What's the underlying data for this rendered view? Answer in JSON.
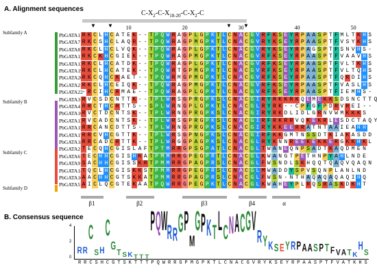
{
  "section_a": {
    "label": "A.",
    "title": "Alignment sequences"
  },
  "section_b": {
    "label": "B.",
    "title": "Consensus sequence"
  },
  "motif": {
    "c1": "C-X",
    "s1": "2",
    "c2": "-C-X",
    "s2": "18-20",
    "c3": "-C-X",
    "s3": "2",
    "c4": "-C"
  },
  "positions": [
    "10",
    "20",
    "30",
    "40",
    "50"
  ],
  "subfamilies": [
    {
      "label": "Subfamily A",
      "color": "#3a9b3a"
    },
    {
      "label": "Subfamily B",
      "color": "#9b59b6"
    },
    {
      "label": "Subfamily C",
      "color": "#e74c3c"
    },
    {
      "label": "Subfamily D",
      "color": "#f0a500"
    }
  ],
  "sequences": [
    {
      "name": "PbGATA1",
      "seq": "RKCLHCATEK--TPQWRAGPLGPKTLCNACGVRFKSEYRPAASPTFMLTKHS"
    },
    {
      "name": "PbGATA7",
      "seq": "RKCSHCLAQR--TPQWRAGPMGPKTLCNACGVRYKSEYRPAASPTFVSYKHS"
    },
    {
      "name": "PbGATA8",
      "seq": "RKCLHCLVQK--TPQWRAGPLGPKTLCNACGVRYKSEYRPAGSPTFSNVHS-"
    },
    {
      "name": "PbGATA11",
      "seq": "RKCKHCGIEK--TPQWRAGPMGPKTLCNACGVRFKSEYRPAASPTFVAAVHS"
    },
    {
      "name": "PbGATA13",
      "seq": "RKCLHCATDK--TPQWRAGPLGPKTLCNACGVRFKSEYRPAASPTFVLTKHS"
    },
    {
      "name": "PbGATA19",
      "seq": "RKCLHCATEK--TPQWRTGPMGPKTLCNACGVRFKSEYRPAASPTFVLTQHS"
    },
    {
      "name": "PbGATA20",
      "seq": "RKCQHCKAET--TPQWRMGPMGPKTLCNACGVRFKSEYRPAASPTFQRDIHS"
    },
    {
      "name": "PbGATA21",
      "seq": "RKCLHCEIQK--TPQWRAGPMGPKTLCNACGVRFKSEYRPAASPTFVASLHS"
    },
    {
      "name": "PbGATA22",
      "seq": "-RCIHCRMAE--TPQWRAGPLGPKTLCNACGVRFKSEYRPAASPTFIEMHS-"
    },
    {
      "name": "PbGATA3",
      "seq": "RVCSDCNTTK--TPLWRSGPRGPKSLCNACGIRYRKKRKQEMEKKSDSNCTTQY"
    },
    {
      "name": "PbGATA4",
      "seq": "RRCTHCRTTS--SPLWRNGPLGPKTLCNACGLRYRK--CPFGFPDRVREI--"
    },
    {
      "name": "PbGATA10",
      "seq": "RVCTDCNTSK--TPLWRNGPRGPKSLCNACGIRYRKDLIDLGRNVWMKKKS"
    },
    {
      "name": "PbGATA12",
      "seq": "RVCADCNTSK--TPLWRSGPRGPKSLCNACGIRFRKRRVQKEKRLESDCTAQY"
    },
    {
      "name": "PbGATA15",
      "seq": "RRCANCDTTS--TPLWRNGPRGPKSLCNACGIRYKKEERRATNTAAIEAHH"
    },
    {
      "name": "PbGATA17",
      "seq": "RRCVHCGTTK--TPLWRSGPNGPKSLCNACGIRFKKGMTNSSDTKIAKASDD"
    },
    {
      "name": "PbGATA18",
      "seq": "RRCADCRTTK--TPLWRGGPAGPKSLCNACGLRYKNNREEKEKKERGKKHKL"
    },
    {
      "name": "PbGATA2",
      "seq": "TECQHCGISLAFTPTMRRGPSGPATLCNACGLTWANEQNPSADTKAQDMEN"
    },
    {
      "name": "PbGATA6",
      "seq": "TECHHCGISHKATPMMRRGPEGPRTLCNACGLKWANGTPETHNPYAHLNDE"
    },
    {
      "name": "PbGATA9",
      "seq": "SACHHCGISSKRTPMMRRGPAGPRSLCNACGLFWSNDLSKHQQTQAQVQAQN"
    },
    {
      "name": "PbGATA14",
      "seq": "TQCLHCGISKKSTPMMRRGPEGPRSLCNACGLMWADDYSPVSQNPLANLND"
    },
    {
      "name": "PbGATA16",
      "seq": "AACHHCGTSKKATPMMRRGPAGPRSLCNACGLFWSN-NTHAQAQAQAQIHQ"
    },
    {
      "name": "PbGATA5",
      "seq": "AICLQCGTEKAATPQWRRGPEGPKTLCNACGLKWAHEYPLRQSRASKDKHT"
    }
  ],
  "secondary_structure": [
    {
      "label": "β1",
      "start": 0,
      "len": 4
    },
    {
      "label": "β2",
      "start": 8,
      "len": 5
    },
    {
      "label": "β3",
      "start": 18,
      "len": 8
    },
    {
      "label": "β4",
      "start": 28,
      "len": 5
    },
    {
      "label": "α",
      "start": 34,
      "len": 5
    }
  ],
  "consensus": "RRCSHCGTSKTTTPQWRRGPMGPKTLCNACGVRYKSEYRPAASPTFVATKHS",
  "logo_axis": {
    "ticks": [
      "4",
      "2",
      "0"
    ]
  }
}
